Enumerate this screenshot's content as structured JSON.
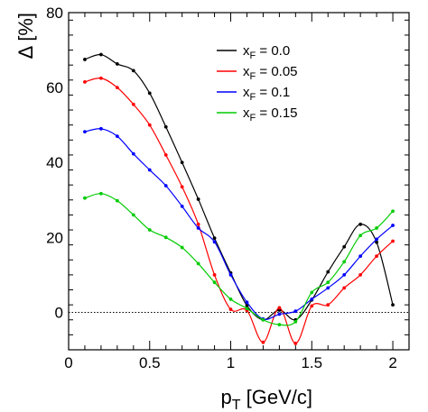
{
  "chart_data": {
    "type": "line",
    "title": "",
    "xlabel": "p_T [GeV/c]",
    "xlabel_main": "p",
    "xlabel_sub": "T",
    "xlabel_rest": " [GeV/c]",
    "ylabel": "Δ [%]",
    "xlim": [
      0,
      2.1
    ],
    "ylim": [
      -10,
      80
    ],
    "x_ticks": [
      "0",
      "0.5",
      "1",
      "1.5",
      "2"
    ],
    "y_ticks": [
      "0",
      "20",
      "40",
      "60",
      "80"
    ],
    "x_tick_values": [
      0,
      0.5,
      1,
      1.5,
      2
    ],
    "y_tick_values": [
      0,
      20,
      40,
      60,
      80
    ],
    "reference_line": 0,
    "legend_position": "top-right",
    "x": [
      0.1,
      0.2,
      0.3,
      0.4,
      0.5,
      0.6,
      0.7,
      0.8,
      0.9,
      1.0,
      1.1,
      1.2,
      1.3,
      1.4,
      1.5,
      1.6,
      1.7,
      1.8,
      1.9,
      2.0
    ],
    "series": [
      {
        "name": "x_F = 0.0",
        "label_main": "x",
        "label_sub": "F",
        "label_rest": " = 0.0",
        "color": "#000000",
        "values": [
          67.5,
          68.8,
          66.3,
          64.5,
          58.5,
          49.5,
          40.0,
          30.2,
          19.8,
          10.5,
          1.8,
          -2.0,
          0.6,
          -2.0,
          3.3,
          10.8,
          17.5,
          23.5,
          18.7,
          2.0
        ]
      },
      {
        "name": "x_F = 0.05",
        "label_main": "x",
        "label_sub": "F",
        "label_rest": " = 0.05",
        "color": "#ff0000",
        "values": [
          61.5,
          62.5,
          60.0,
          55.5,
          50.0,
          42.0,
          33.5,
          23.5,
          10.0,
          0.8,
          0.5,
          -8.0,
          1.2,
          -8.3,
          1.7,
          2.0,
          6.5,
          10.0,
          15.0,
          19.0
        ]
      },
      {
        "name": "x_F = 0.1",
        "label_main": "x",
        "label_sub": "F",
        "label_rest": " = 0.1",
        "color": "#0000ff",
        "values": [
          48.2,
          49.0,
          47.0,
          42.3,
          38.0,
          33.8,
          28.3,
          22.5,
          18.8,
          10.0,
          2.7,
          -1.8,
          -0.5,
          0.3,
          3.5,
          6.5,
          10.0,
          15.0,
          19.5,
          23.2
        ]
      },
      {
        "name": "x_F = 0.15",
        "label_main": "x",
        "label_sub": "F",
        "label_rest": " = 0.15",
        "color": "#00cc00",
        "values": [
          30.5,
          31.7,
          29.8,
          26.0,
          22.0,
          20.0,
          17.3,
          13.0,
          8.0,
          3.5,
          1.0,
          -2.0,
          -3.3,
          -2.5,
          5.3,
          8.0,
          13.5,
          20.5,
          22.5,
          27.0
        ]
      }
    ]
  }
}
